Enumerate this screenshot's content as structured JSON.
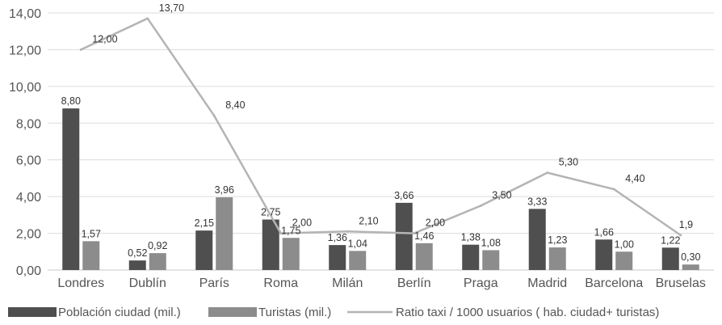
{
  "chart_data": {
    "type": "bar",
    "categories": [
      "Londres",
      "Dublín",
      "París",
      "Roma",
      "Milán",
      "Berlín",
      "Praga",
      "Madrid",
      "Barcelona",
      "Bruselas"
    ],
    "ylim": [
      0,
      14
    ],
    "yticks": [
      "0,00",
      "2,00",
      "4,00",
      "6,00",
      "8,00",
      "10,00",
      "12,00",
      "14,00"
    ],
    "grid": true,
    "legend_position": "bottom",
    "series": [
      {
        "name": "Población ciudad (mil.)",
        "type": "bar",
        "color": "#4f4f4f",
        "values": [
          8.8,
          0.52,
          2.15,
          2.75,
          1.36,
          3.66,
          1.38,
          3.33,
          1.66,
          1.22
        ],
        "labels": [
          "8,80",
          "0,52",
          "2,15",
          "2,75",
          "1,36",
          "3,66",
          "1,38",
          "3,33",
          "1,66",
          "1,22"
        ]
      },
      {
        "name": "Turistas (mil.)",
        "type": "bar",
        "color": "#8c8c8c",
        "values": [
          1.57,
          0.92,
          3.96,
          1.75,
          1.04,
          1.46,
          1.08,
          1.23,
          1.0,
          0.3
        ],
        "labels": [
          "1,57",
          "0,92",
          "3,96",
          "1,75",
          "1,04",
          "1,46",
          "1,08",
          "1,23",
          "1,00",
          "0,30"
        ]
      },
      {
        "name": "Ratio taxi / 1000 usuarios ( hab. ciudad+ turistas)",
        "type": "line",
        "color": "#b4b4b4",
        "values": [
          12.0,
          13.7,
          8.4,
          2.0,
          2.1,
          2.0,
          3.5,
          5.3,
          4.4,
          1.9
        ],
        "labels": [
          "12,00",
          "13,70",
          "8,40",
          "2,00",
          "2,10",
          "2,00",
          "3,50",
          "5,30",
          "4,40",
          "1,9"
        ]
      }
    ]
  }
}
